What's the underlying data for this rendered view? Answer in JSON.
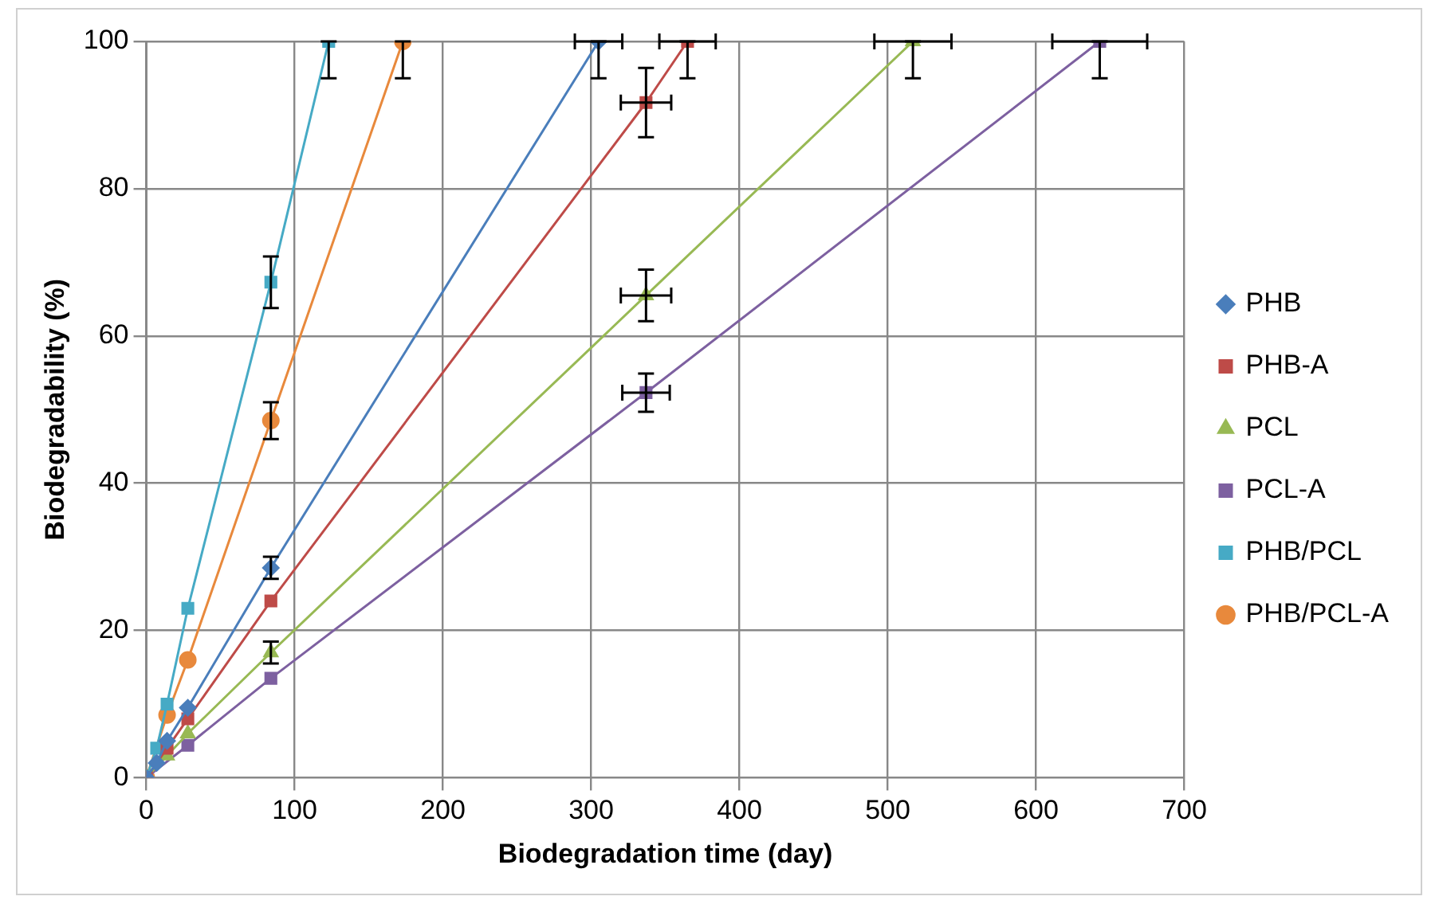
{
  "chart_data": {
    "type": "line",
    "xlabel": "Biodegradation time (day)",
    "ylabel": "Biodegradability (%)",
    "xlim": [
      0,
      700
    ],
    "xticks": [
      0,
      100,
      200,
      300,
      400,
      500,
      600,
      700
    ],
    "ylim": [
      0,
      100
    ],
    "yticks": [
      0,
      20,
      40,
      60,
      80,
      100
    ],
    "grid": true,
    "legend": "right",
    "line_style": "solid",
    "series": [
      {
        "name": "PHB",
        "color": "#4a7ebb",
        "marker": "diamond",
        "x": [
          0,
          7,
          14,
          28,
          84,
          305
        ],
        "values": [
          0,
          2,
          5,
          9.5,
          28.5,
          100
        ],
        "errors": [
          null,
          null,
          null,
          null,
          [
            27,
            30
          ],
          [
            95,
            100
          ]
        ],
        "xerrors": [
          null,
          null,
          null,
          null,
          null,
          [
            289,
            321
          ]
        ]
      },
      {
        "name": "PHB-A",
        "color": "#be4b48",
        "marker": "square",
        "x": [
          0,
          7,
          14,
          28,
          84,
          337,
          365
        ],
        "values": [
          0,
          null,
          4,
          8,
          24,
          91.7,
          100
        ],
        "errors": [
          null,
          null,
          null,
          null,
          null,
          [
            87,
            96.4
          ],
          [
            95,
            100
          ]
        ],
        "xerrors": [
          null,
          null,
          null,
          null,
          null,
          [
            320,
            354
          ],
          [
            346,
            384
          ]
        ]
      },
      {
        "name": "PCL",
        "color": "#98b954",
        "marker": "triangle",
        "x": [
          0,
          7,
          14,
          28,
          84,
          337,
          517
        ],
        "values": [
          0,
          null,
          3,
          6,
          17,
          65.5,
          100
        ],
        "errors": [
          null,
          null,
          null,
          null,
          [
            15.5,
            18.5
          ],
          [
            62,
            69
          ],
          [
            95,
            100
          ]
        ],
        "xerrors": [
          null,
          null,
          null,
          null,
          null,
          [
            320,
            354
          ],
          [
            491,
            543
          ]
        ]
      },
      {
        "name": "PCL-A",
        "color": "#7d60a0",
        "marker": "square",
        "x": [
          0,
          7,
          14,
          28,
          84,
          337,
          643
        ],
        "values": [
          0,
          null,
          null,
          4.4,
          13.5,
          52.3,
          100
        ],
        "errors": [
          null,
          null,
          null,
          null,
          null,
          [
            49.7,
            54.9
          ],
          [
            95,
            100
          ]
        ],
        "xerrors": [
          null,
          null,
          null,
          null,
          null,
          [
            321,
            353
          ],
          [
            611,
            675
          ]
        ]
      },
      {
        "name": "PHB/PCL",
        "color": "#46aac5",
        "marker": "square",
        "x": [
          0,
          7,
          14,
          28,
          84,
          123
        ],
        "values": [
          0,
          4,
          10,
          23,
          67.3,
          100
        ],
        "errors": [
          null,
          null,
          null,
          null,
          [
            63.8,
            70.8
          ],
          [
            95,
            100
          ]
        ],
        "xerrors": [
          null,
          null,
          null,
          null,
          null,
          null
        ]
      },
      {
        "name": "PHB/PCL-A",
        "color": "#e8893c",
        "marker": "circle",
        "x": [
          0,
          7,
          14,
          28,
          84,
          173
        ],
        "values": [
          0,
          null,
          8.5,
          16,
          48.5,
          100
        ],
        "errors": [
          null,
          null,
          null,
          null,
          [
            46,
            51
          ],
          [
            95,
            100
          ]
        ],
        "xerrors": [
          null,
          null,
          null,
          null,
          null,
          null
        ]
      }
    ]
  }
}
